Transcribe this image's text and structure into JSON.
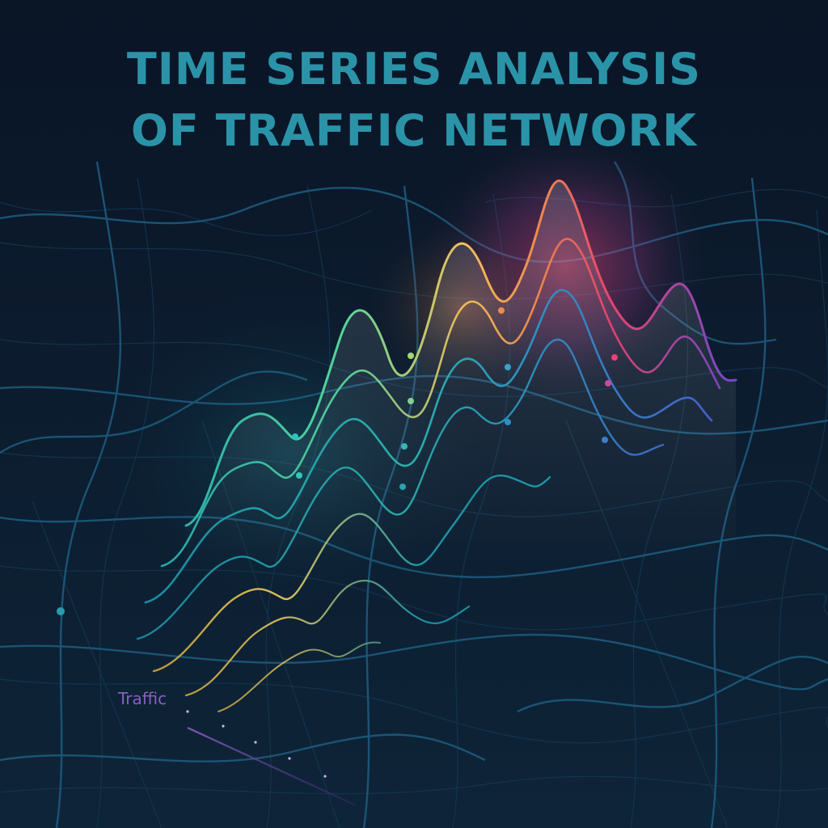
{
  "poster": {
    "title_line_1": "TIME SERIES ANALYSIS",
    "title_line_2": "OF TRAFFIC NETWORK",
    "caption": "Traffic"
  },
  "colors": {
    "background_top": "#0a1526",
    "background_bottom": "#0e2438",
    "title": "#2b93a8",
    "road": "#1d5a7c",
    "road_minor": "#153a55",
    "caption": "#8a5fc0",
    "gradient_cool": "#1fa7b0",
    "gradient_green": "#55d49a",
    "gradient_yellow": "#f2c25a",
    "gradient_orange": "#f08a4b",
    "gradient_red": "#e8436f",
    "gradient_violet": "#7a48c8"
  }
}
